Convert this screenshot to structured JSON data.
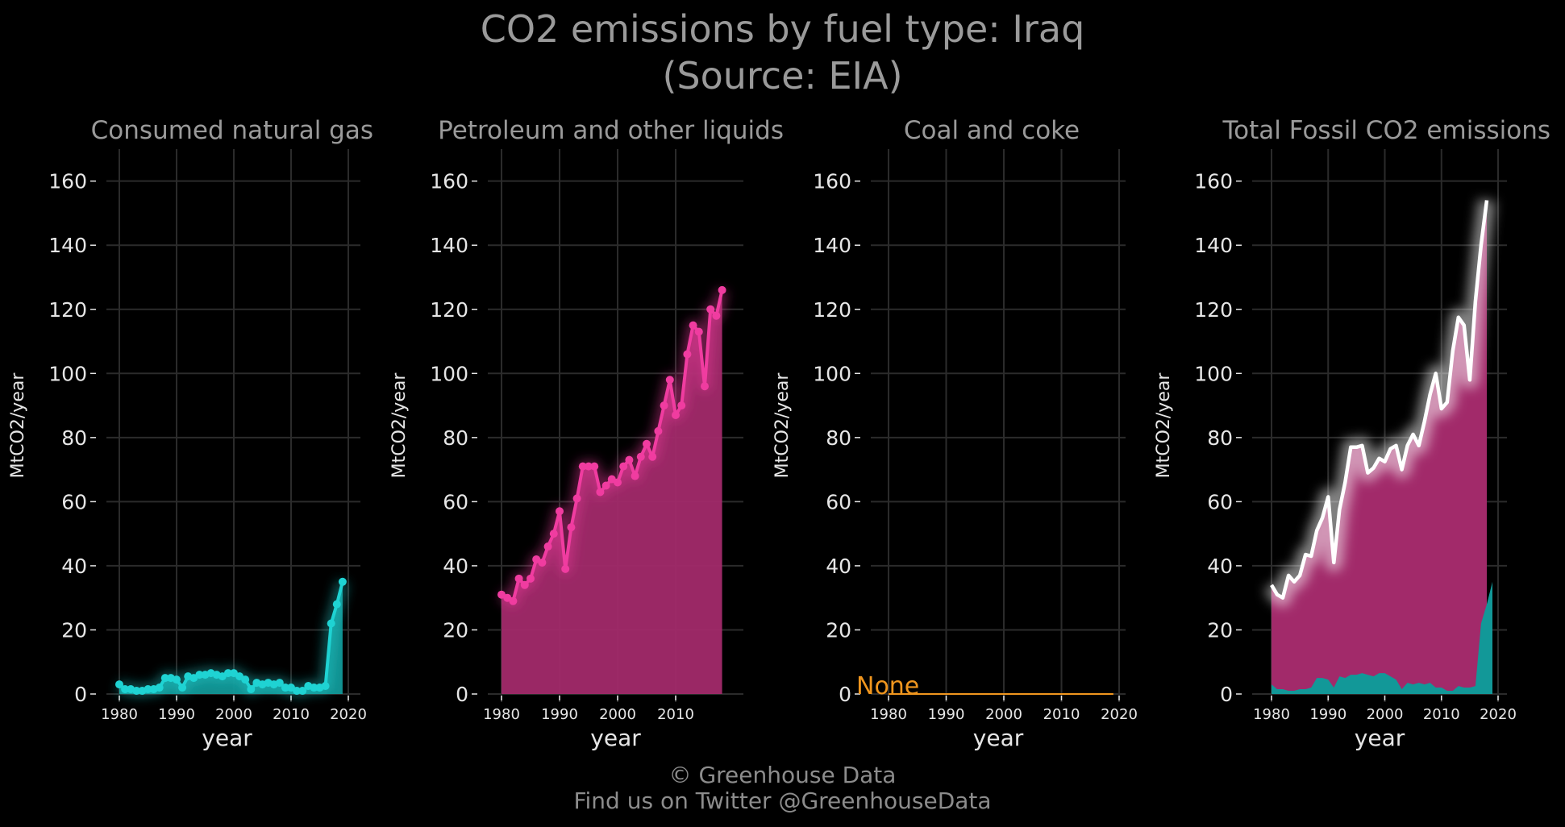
{
  "title": "CO2 emissions by fuel type: Iraq",
  "subtitle": "(Source: EIA)",
  "footer": {
    "copyright": "© Greenhouse Data",
    "twitter": "Find us on Twitter @GreenhouseData"
  },
  "colors": {
    "background": "#000000",
    "grid": "#2b2b2b",
    "gas": "#1fd3d3",
    "gas_fill": "#129898",
    "petroleum": "#f03ca0",
    "petroleum_fill": "#a22a6a",
    "coal": "#f0961e",
    "total_line": "#ffffff"
  },
  "chart_data": [
    {
      "type": "area",
      "title": "Consumed natural gas",
      "xlabel": "year",
      "ylabel": "MtCO2/year",
      "xlim": [
        1980,
        2020
      ],
      "ylim": [
        0,
        170
      ],
      "xticks": [
        1980,
        1990,
        2000,
        2010,
        2020
      ],
      "yticks": [
        0,
        20,
        40,
        60,
        80,
        100,
        120,
        140,
        160
      ],
      "grid": true,
      "series": [
        {
          "x": [
            1980,
            1981,
            1982,
            1983,
            1984,
            1985,
            1986,
            1987,
            1988,
            1989,
            1990,
            1991,
            1992,
            1993,
            1994,
            1995,
            1996,
            1997,
            1998,
            1999,
            2000,
            2001,
            2002,
            2003,
            2004,
            2005,
            2006,
            2007,
            2008,
            2009,
            2010,
            2011,
            2012,
            2013,
            2014,
            2015,
            2016,
            2017,
            2018,
            2019
          ],
          "values": [
            3,
            1.5,
            1.5,
            1,
            1,
            1.5,
            1.5,
            2,
            5,
            5,
            4.5,
            2,
            5.5,
            5,
            6,
            6,
            6.5,
            6,
            5.5,
            6.5,
            6.5,
            5.5,
            4.5,
            1.5,
            3.5,
            3,
            3.5,
            3,
            3.5,
            2,
            2,
            1,
            1,
            2.5,
            2,
            2,
            2.5,
            22,
            28,
            35
          ]
        }
      ]
    },
    {
      "type": "area",
      "title": "Petroleum and other liquids",
      "xlabel": "year",
      "ylabel": "MtCO2/year",
      "xlim": [
        1980,
        2020
      ],
      "ylim": [
        0,
        170
      ],
      "xticks": [
        1980,
        1990,
        2000,
        2010
      ],
      "yticks": [
        0,
        20,
        40,
        60,
        80,
        100,
        120,
        140,
        160
      ],
      "grid": true,
      "series": [
        {
          "x": [
            1980,
            1981,
            1982,
            1983,
            1984,
            1985,
            1986,
            1987,
            1988,
            1989,
            1990,
            1991,
            1992,
            1993,
            1994,
            1995,
            1996,
            1997,
            1998,
            1999,
            2000,
            2001,
            2002,
            2003,
            2004,
            2005,
            2006,
            2007,
            2008,
            2009,
            2010,
            2011,
            2012,
            2013,
            2014,
            2015,
            2016,
            2017,
            2018
          ],
          "values": [
            31,
            30,
            29,
            36,
            34,
            36,
            42,
            41,
            46,
            50,
            57,
            39,
            52,
            61,
            71,
            71,
            71,
            63,
            65,
            67,
            66,
            71,
            73,
            68,
            74,
            78,
            74,
            82,
            90,
            98,
            87,
            90,
            106,
            115,
            113,
            96,
            120,
            118,
            126
          ]
        }
      ]
    },
    {
      "type": "line",
      "title": "Coal and coke",
      "xlabel": "year",
      "ylabel": "MtCO2/year",
      "xlim": [
        1980,
        2020
      ],
      "ylim": [
        0,
        170
      ],
      "xticks": [
        1980,
        1990,
        2000,
        2010,
        2020
      ],
      "yticks": [
        0,
        20,
        40,
        60,
        80,
        100,
        120,
        140,
        160
      ],
      "grid": true,
      "annotation": "None",
      "series": [
        {
          "x": [
            1980,
            2019
          ],
          "values": [
            0,
            0
          ]
        }
      ]
    },
    {
      "type": "area",
      "title": "Total Fossil CO2 emissions",
      "xlabel": "year",
      "ylabel": "MtCO2/year",
      "xlim": [
        1980,
        2020
      ],
      "ylim": [
        0,
        170
      ],
      "xticks": [
        1980,
        1990,
        2000,
        2010,
        2020
      ],
      "yticks": [
        0,
        20,
        40,
        60,
        80,
        100,
        120,
        140,
        160
      ],
      "grid": true,
      "series": [
        {
          "x": [
            1980,
            1981,
            1982,
            1983,
            1984,
            1985,
            1986,
            1987,
            1988,
            1989,
            1990,
            1991,
            1992,
            1993,
            1994,
            1995,
            1996,
            1997,
            1998,
            1999,
            2000,
            2001,
            2002,
            2003,
            2004,
            2005,
            2006,
            2007,
            2008,
            2009,
            2010,
            2011,
            2012,
            2013,
            2014,
            2015,
            2016,
            2017,
            2018
          ],
          "values": [
            34,
            31,
            30,
            37,
            35,
            37,
            43.5,
            43,
            51,
            55,
            61.5,
            41,
            57.5,
            66,
            77,
            77,
            77.5,
            69,
            70.5,
            73.5,
            72.5,
            76.5,
            77.5,
            70,
            77.5,
            81,
            77.5,
            85,
            93.5,
            100,
            89,
            91,
            107,
            117.5,
            115,
            98,
            122.5,
            140,
            154
          ]
        }
      ]
    }
  ]
}
